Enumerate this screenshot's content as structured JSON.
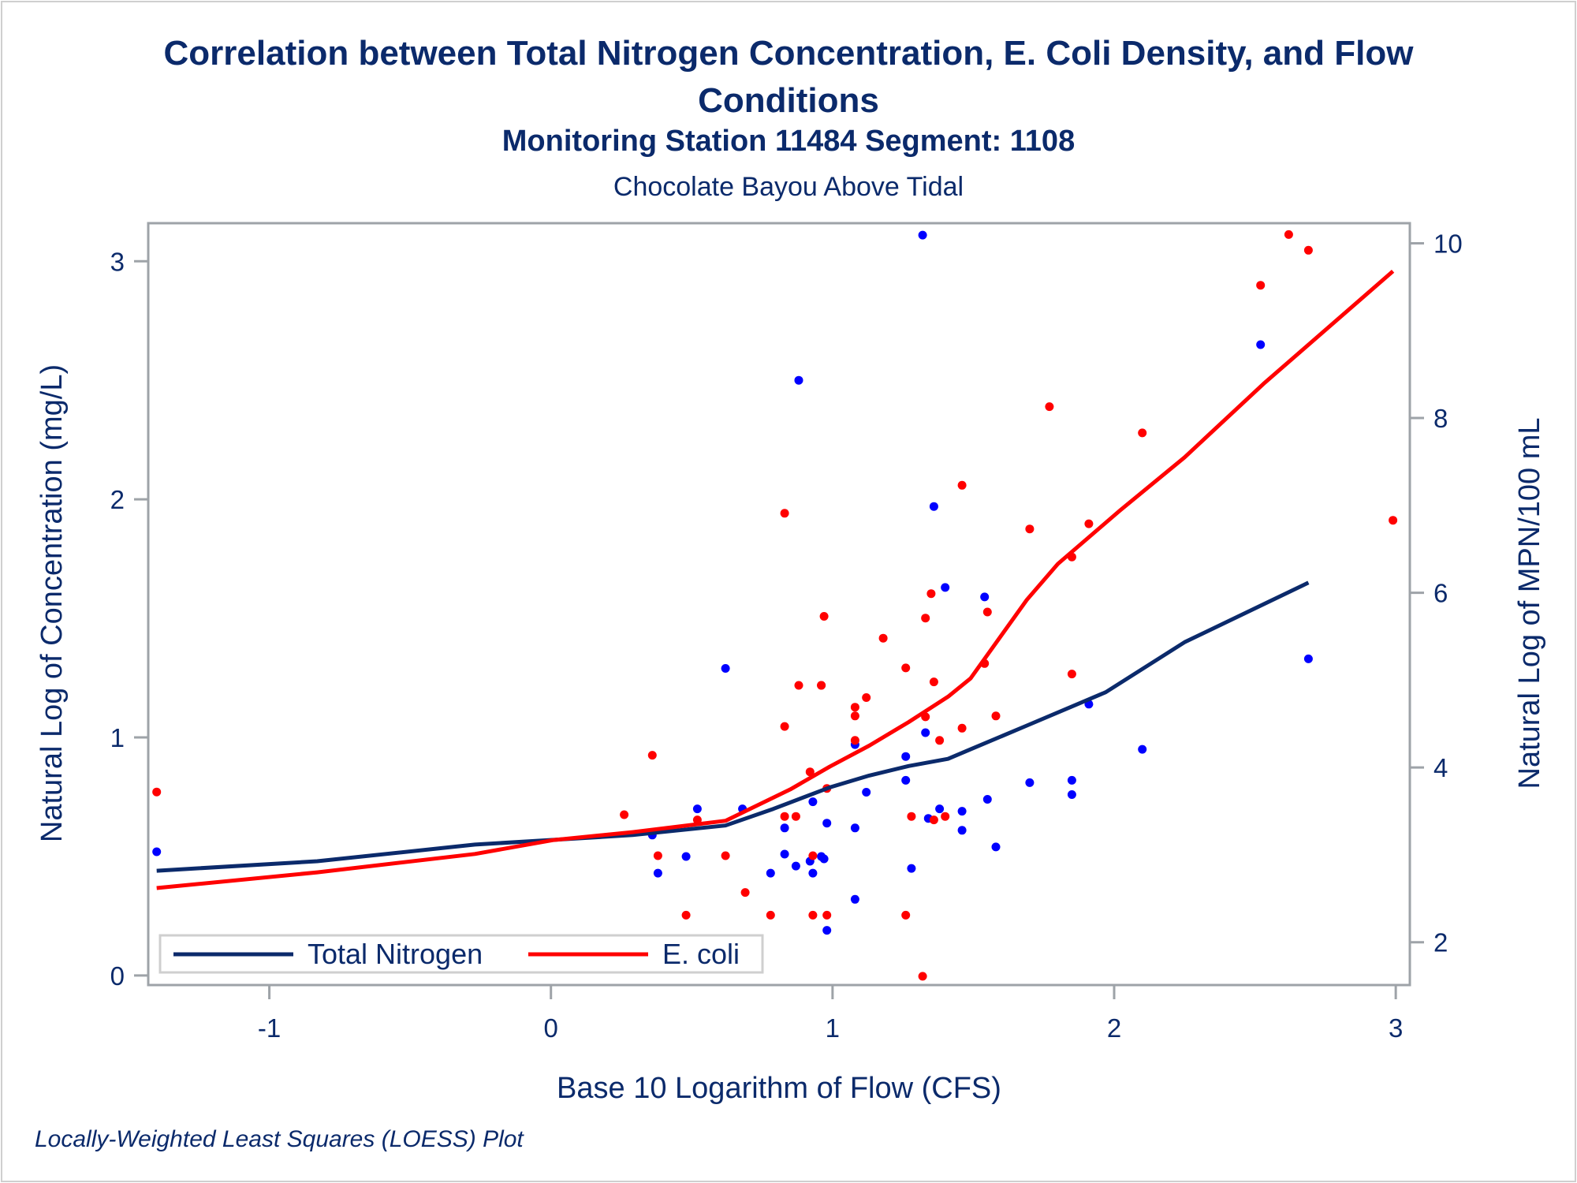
{
  "title_line1": "Correlation between Total Nitrogen Concentration, E. Coli Density, and Flow",
  "title_line2": "Conditions",
  "subtitle": "Monitoring Station 11484 Segment: 1108",
  "subtitle2": "Chocolate Bayou Above Tidal",
  "footnote": "Locally-Weighted Least Squares (LOESS) Plot",
  "chart_data": {
    "type": "scatter",
    "title": "Correlation between Total Nitrogen Concentration, E. Coli Density, and Flow Conditions",
    "xlabel": "Base 10 Logarithm of Flow (CFS)",
    "ylabel": "Natural Log of Concentration (mg/L)",
    "y2label": "Natural Log of MPN/100 mL",
    "xlim": [
      -1.43,
      3.05
    ],
    "ylim": [
      -0.04,
      3.16
    ],
    "y2lim": [
      1.51,
      10.23
    ],
    "xticks": [
      "-1",
      "0",
      "1",
      "2",
      "3"
    ],
    "xtick_values": [
      -1,
      0,
      1,
      2,
      3
    ],
    "yticks": [
      "0",
      "1",
      "2",
      "3"
    ],
    "ytick_values": [
      0,
      1,
      2,
      3
    ],
    "y2ticks": [
      "2",
      "4",
      "6",
      "8",
      "10"
    ],
    "y2tick_values": [
      2,
      4,
      6,
      8,
      10
    ],
    "grid": false,
    "legend_position": "bottom-left",
    "colors": {
      "nitrogen_line": "#0b2a6b",
      "nitrogen_points": "#0000ff",
      "ecoli_line": "#ff0000",
      "ecoli_points": "#ff0000",
      "axis": "#9ea3a8",
      "text": "#0b2a6b"
    },
    "series": [
      {
        "name": "Total Nitrogen",
        "axis": "left",
        "points": [
          [
            -1.4,
            0.52
          ],
          [
            0.62,
            1.29
          ],
          [
            0.52,
            0.7
          ],
          [
            0.68,
            0.7
          ],
          [
            0.36,
            0.59
          ],
          [
            0.48,
            0.5
          ],
          [
            0.38,
            0.43
          ],
          [
            0.78,
            0.43
          ],
          [
            0.83,
            0.51
          ],
          [
            0.87,
            0.46
          ],
          [
            0.93,
            0.73
          ],
          [
            0.92,
            0.48
          ],
          [
            0.93,
            0.43
          ],
          [
            0.96,
            0.5
          ],
          [
            0.97,
            0.49
          ],
          [
            0.83,
            0.62
          ],
          [
            0.98,
            0.64
          ],
          [
            0.98,
            0.19
          ],
          [
            1.08,
            0.97
          ],
          [
            1.08,
            0.62
          ],
          [
            1.08,
            0.32
          ],
          [
            1.12,
            0.77
          ],
          [
            1.26,
            0.92
          ],
          [
            1.26,
            0.82
          ],
          [
            1.28,
            0.45
          ],
          [
            1.33,
            1.02
          ],
          [
            1.32,
            3.11
          ],
          [
            1.34,
            0.66
          ],
          [
            1.38,
            0.7
          ],
          [
            1.36,
            1.97
          ],
          [
            1.46,
            0.69
          ],
          [
            1.46,
            0.61
          ],
          [
            1.4,
            1.63
          ],
          [
            1.54,
            1.59
          ],
          [
            1.55,
            0.74
          ],
          [
            1.58,
            0.54
          ],
          [
            0.88,
            2.5
          ],
          [
            1.7,
            0.81
          ],
          [
            1.85,
            0.82
          ],
          [
            1.85,
            0.76
          ],
          [
            1.91,
            1.14
          ],
          [
            2.1,
            0.95
          ],
          [
            2.52,
            2.65
          ],
          [
            2.69,
            1.33
          ]
        ],
        "loess": [
          [
            -1.4,
            0.44
          ],
          [
            -0.83,
            0.48
          ],
          [
            -0.27,
            0.55
          ],
          [
            0.01,
            0.57
          ],
          [
            0.29,
            0.59
          ],
          [
            0.62,
            0.63
          ],
          [
            0.79,
            0.7
          ],
          [
            0.99,
            0.79
          ],
          [
            1.13,
            0.84
          ],
          [
            1.27,
            0.88
          ],
          [
            1.41,
            0.91
          ],
          [
            1.49,
            0.95
          ],
          [
            1.69,
            1.05
          ],
          [
            1.97,
            1.19
          ],
          [
            2.25,
            1.4
          ],
          [
            2.69,
            1.65
          ]
        ]
      },
      {
        "name": "E. coli",
        "axis": "right",
        "points": [
          [
            -1.4,
            3.72
          ],
          [
            0.26,
            3.46
          ],
          [
            0.36,
            4.14
          ],
          [
            0.38,
            2.99
          ],
          [
            0.52,
            3.4
          ],
          [
            0.62,
            2.99
          ],
          [
            0.48,
            2.31
          ],
          [
            0.69,
            2.57
          ],
          [
            0.78,
            2.31
          ],
          [
            0.93,
            2.31
          ],
          [
            0.98,
            2.31
          ],
          [
            1.26,
            2.31
          ],
          [
            1.32,
            1.61
          ],
          [
            0.88,
            4.94
          ],
          [
            0.96,
            4.94
          ],
          [
            0.83,
            4.47
          ],
          [
            0.92,
            3.95
          ],
          [
            0.98,
            3.76
          ],
          [
            0.83,
            3.44
          ],
          [
            0.87,
            3.44
          ],
          [
            0.93,
            2.99
          ],
          [
            0.83,
            6.91
          ],
          [
            0.97,
            5.73
          ],
          [
            0.96,
            4.94
          ],
          [
            1.08,
            4.69
          ],
          [
            1.08,
            4.59
          ],
          [
            1.08,
            4.31
          ],
          [
            1.12,
            4.8
          ],
          [
            1.18,
            5.48
          ],
          [
            1.26,
            5.14
          ],
          [
            1.33,
            5.71
          ],
          [
            1.36,
            4.98
          ],
          [
            1.33,
            4.58
          ],
          [
            1.38,
            4.31
          ],
          [
            1.46,
            4.45
          ],
          [
            1.58,
            4.59
          ],
          [
            1.28,
            3.44
          ],
          [
            1.36,
            3.4
          ],
          [
            1.4,
            3.44
          ],
          [
            1.35,
            5.99
          ],
          [
            1.46,
            7.23
          ],
          [
            1.55,
            5.78
          ],
          [
            1.54,
            5.19
          ],
          [
            1.7,
            6.73
          ],
          [
            1.77,
            8.13
          ],
          [
            1.85,
            6.41
          ],
          [
            1.91,
            6.79
          ],
          [
            1.85,
            5.07
          ],
          [
            2.1,
            7.83
          ],
          [
            2.52,
            9.52
          ],
          [
            2.62,
            10.1
          ],
          [
            2.69,
            9.92
          ],
          [
            2.99,
            6.83
          ]
        ],
        "loess": [
          [
            -1.4,
            2.62
          ],
          [
            -0.83,
            2.8
          ],
          [
            -0.27,
            3.01
          ],
          [
            0.01,
            3.17
          ],
          [
            0.29,
            3.26
          ],
          [
            0.62,
            3.39
          ],
          [
            0.85,
            3.75
          ],
          [
            0.99,
            4.01
          ],
          [
            1.13,
            4.25
          ],
          [
            1.27,
            4.52
          ],
          [
            1.41,
            4.81
          ],
          [
            1.49,
            5.02
          ],
          [
            1.69,
            5.92
          ],
          [
            1.8,
            6.33
          ],
          [
            2.02,
            6.94
          ],
          [
            2.25,
            7.55
          ],
          [
            2.53,
            8.39
          ],
          [
            2.99,
            9.68
          ]
        ]
      }
    ],
    "legend": [
      "Total Nitrogen",
      "E. coli"
    ]
  }
}
